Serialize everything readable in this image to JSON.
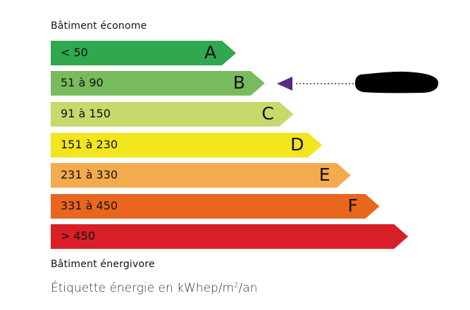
{
  "top_label": "Bâtiment économe",
  "bottom_label": "Bâtiment énergivore",
  "footer": {
    "prefix": "Étiquette énergie en kWhep/m",
    "sup": "2",
    "suffix": "/an"
  },
  "classes": [
    {
      "range": "< 50",
      "letter": "A",
      "color": "#2fa84f"
    },
    {
      "range": "51 à 90",
      "letter": "B",
      "color": "#78bb5c"
    },
    {
      "range": "91 à 150",
      "letter": "C",
      "color": "#c9d86b"
    },
    {
      "range": "151 à 230",
      "letter": "D",
      "color": "#f2e51d"
    },
    {
      "range": "231 à 330",
      "letter": "E",
      "color": "#f4aa4e"
    },
    {
      "range": "331 à 450",
      "letter": "F",
      "color": "#e9661f"
    },
    {
      "range": "> 450",
      "letter": "",
      "color": "#d81e26"
    }
  ],
  "indicator": {
    "class": "B",
    "color": "#5b2a86",
    "redacted_value_color": "#000000"
  }
}
